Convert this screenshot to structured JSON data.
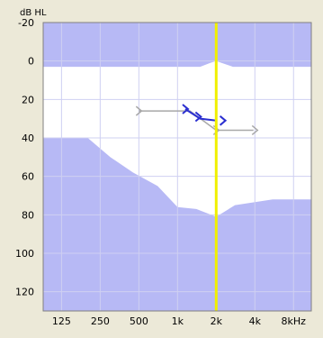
{
  "chart_data": {
    "type": "area",
    "title": "",
    "ylabel": "dB HL",
    "xlabel": "",
    "x_scale": "log",
    "y_inverted": true,
    "ylim": [
      -20,
      130
    ],
    "xlim": [
      90,
      11000
    ],
    "x_ticks": [
      {
        "value": 125,
        "label": "125"
      },
      {
        "value": 250,
        "label": "250"
      },
      {
        "value": 500,
        "label": "500"
      },
      {
        "value": 1000,
        "label": "1k"
      },
      {
        "value": 2000,
        "label": "2k"
      },
      {
        "value": 4000,
        "label": "4k"
      },
      {
        "value": 8000,
        "label": "8kHz"
      }
    ],
    "y_ticks": [
      {
        "value": -20,
        "label": "-20"
      },
      {
        "value": 0,
        "label": "0"
      },
      {
        "value": 20,
        "label": "20"
      },
      {
        "value": 40,
        "label": "40"
      },
      {
        "value": 60,
        "label": "60"
      },
      {
        "value": 80,
        "label": "80"
      },
      {
        "value": 100,
        "label": "100"
      },
      {
        "value": 120,
        "label": "120"
      }
    ],
    "grid": true,
    "cursor_frequency": 2000,
    "colors": {
      "plot_bg": "#ffffff",
      "band_fill": "#b7b9f5",
      "grid": "#cfd0f2",
      "cursor": "#f0f000",
      "gray_series": "#a8a8a8",
      "blue_series": "#2b2fd0"
    },
    "upper_band": [
      {
        "x": 90,
        "y": 3
      },
      {
        "x": 1500,
        "y": 3
      },
      {
        "x": 1800,
        "y": 1
      },
      {
        "x": 2000,
        "y": 0
      },
      {
        "x": 2200,
        "y": 1
      },
      {
        "x": 2700,
        "y": 3
      },
      {
        "x": 11000,
        "y": 3
      }
    ],
    "lower_band": [
      {
        "x": 90,
        "y": 40
      },
      {
        "x": 200,
        "y": 40
      },
      {
        "x": 300,
        "y": 50
      },
      {
        "x": 450,
        "y": 58
      },
      {
        "x": 700,
        "y": 65
      },
      {
        "x": 1000,
        "y": 76
      },
      {
        "x": 1400,
        "y": 77
      },
      {
        "x": 2000,
        "y": 81
      },
      {
        "x": 2800,
        "y": 75
      },
      {
        "x": 5500,
        "y": 72
      },
      {
        "x": 11000,
        "y": 72
      }
    ],
    "series": [
      {
        "key": "gray",
        "marker": ">",
        "points": [
          {
            "x": 500,
            "y": 26
          },
          {
            "x": 1250,
            "y": 26
          },
          {
            "x": 2000,
            "y": 36
          },
          {
            "x": 3900,
            "y": 36
          }
        ],
        "marker_points": [
          {
            "x": 500,
            "y": 26
          },
          {
            "x": 2000,
            "y": 36
          },
          {
            "x": 4000,
            "y": 36
          }
        ]
      },
      {
        "key": "blue",
        "marker": ">",
        "points": [
          {
            "x": 1150,
            "y": 25
          },
          {
            "x": 1500,
            "y": 30
          },
          {
            "x": 2000,
            "y": 31
          }
        ],
        "marker_points": [
          {
            "x": 1150,
            "y": 25
          },
          {
            "x": 1450,
            "y": 29
          },
          {
            "x": 2250,
            "y": 31
          }
        ]
      }
    ]
  }
}
